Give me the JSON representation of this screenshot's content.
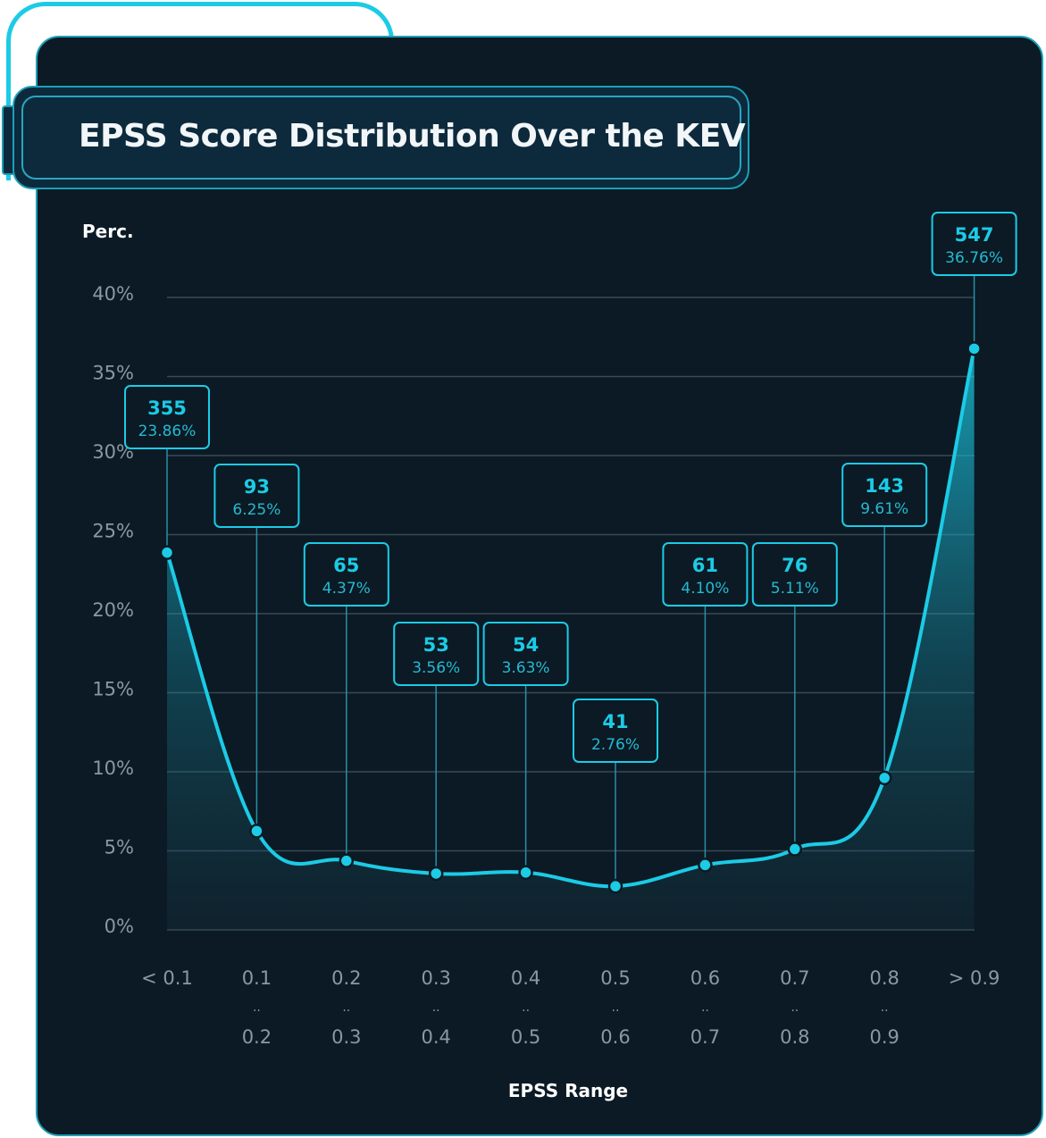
{
  "header": {
    "title": "EPSS Score Distribution Over the KEV"
  },
  "colors": {
    "accent": "#1ccbe6",
    "background": "#0b1a24",
    "grid": "#3a4a55",
    "axis_text": "#8a98a2"
  },
  "chart_data": {
    "type": "area",
    "title": "EPSS Score Distribution Over the KEV",
    "xlabel": "EPSS Range",
    "ylabel": "Perc.",
    "ylim": [
      0,
      40
    ],
    "yticks": [
      "0%",
      "5%",
      "10%",
      "15%",
      "20%",
      "25%",
      "30%",
      "35%",
      "40%"
    ],
    "grid": true,
    "categories": [
      [
        "< 0.1"
      ],
      [
        "0.1",
        "..",
        "0.2"
      ],
      [
        "0.2",
        "..",
        "0.3"
      ],
      [
        "0.3",
        "..",
        "0.4"
      ],
      [
        "0.4",
        "..",
        "0.5"
      ],
      [
        "0.5",
        "..",
        "0.6"
      ],
      [
        "0.6",
        "..",
        "0.7"
      ],
      [
        "0.7",
        "..",
        "0.8"
      ],
      [
        "0.8",
        "..",
        "0.9"
      ],
      [
        "> 0.9"
      ]
    ],
    "counts": [
      355,
      93,
      65,
      53,
      54,
      41,
      61,
      76,
      143,
      547
    ],
    "values": [
      23.86,
      6.25,
      4.37,
      3.56,
      3.63,
      2.76,
      4.1,
      5.11,
      9.61,
      36.76
    ],
    "value_labels": [
      "23.86%",
      "6.25%",
      "4.37%",
      "3.56%",
      "3.63%",
      "2.76%",
      "4.10%",
      "5.11%",
      "9.61%",
      "36.76%"
    ]
  }
}
